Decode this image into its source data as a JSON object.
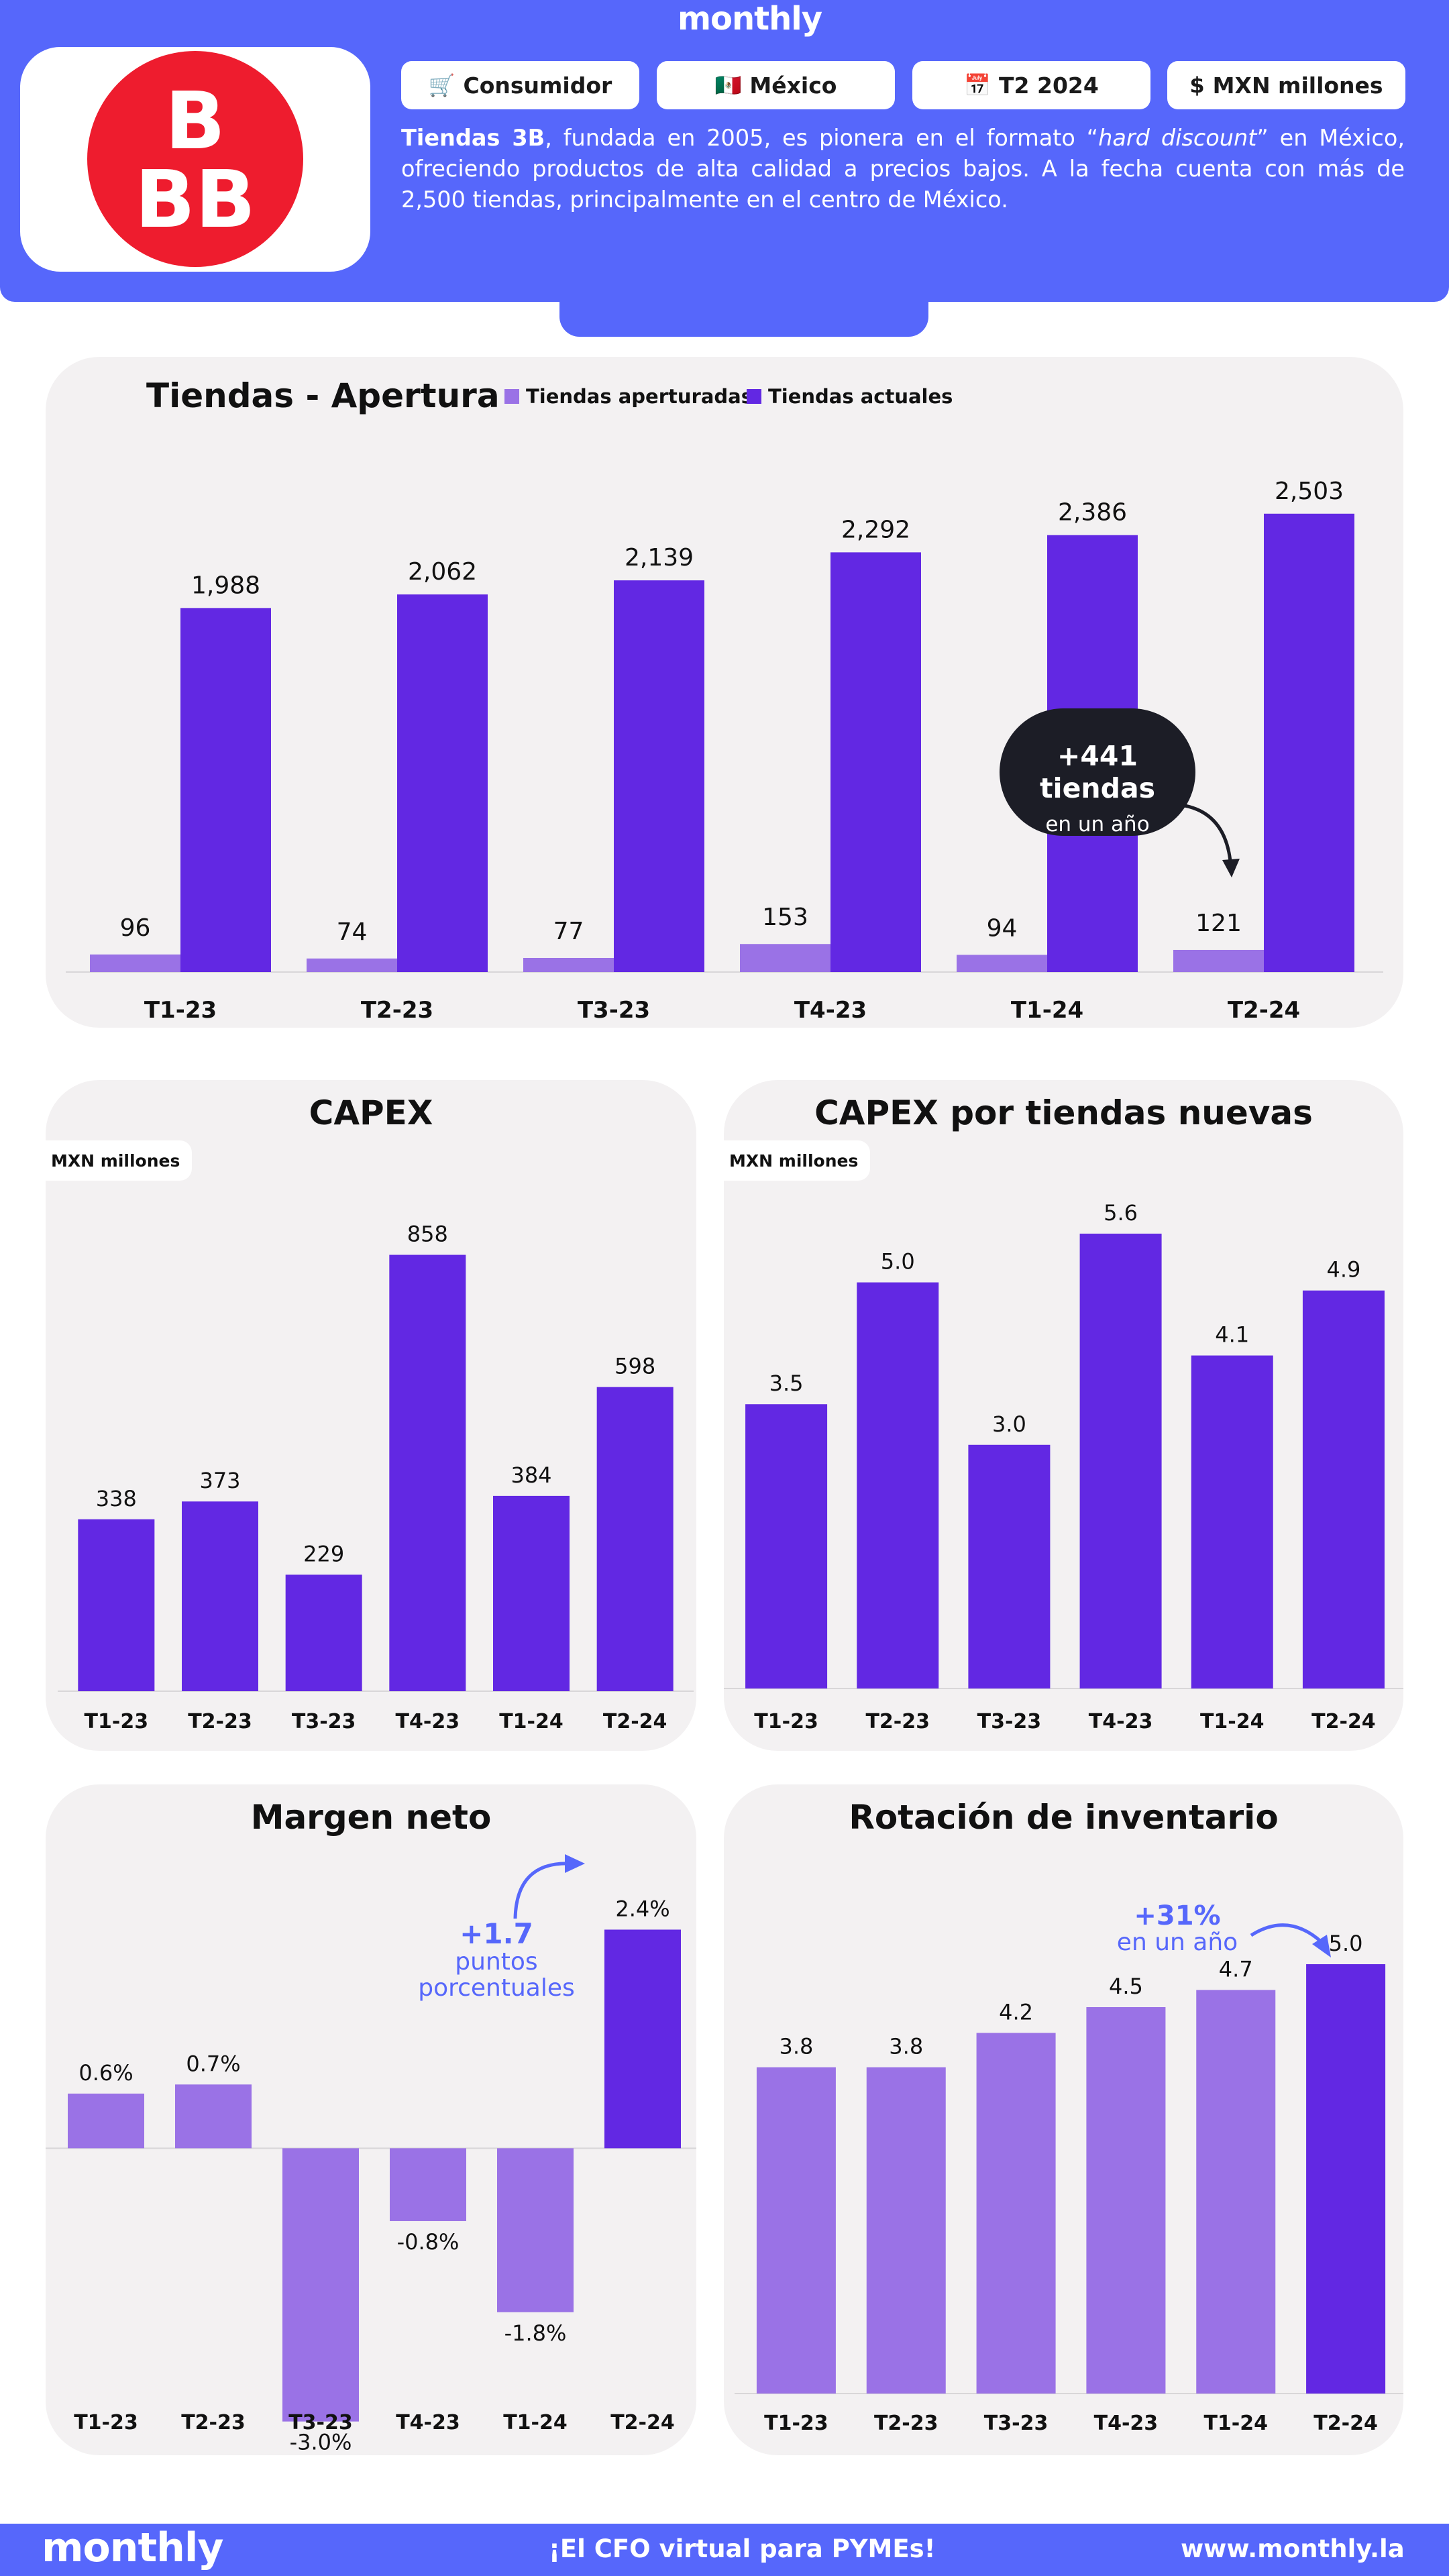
{
  "brand": "monthly",
  "header": {
    "pills": [
      {
        "icon": "cart-icon",
        "glyph": "🛒",
        "label": "Consumidor"
      },
      {
        "icon": "mexico-flag-icon",
        "glyph": "🇲🇽",
        "label": "México"
      },
      {
        "icon": "calendar-icon",
        "glyph": "📅",
        "label": "T2 2024"
      },
      {
        "icon": "dollar-icon",
        "glyph": "$",
        "label": "MXN millones"
      }
    ],
    "company": "Tiendas 3B",
    "desc_a": ", fundada en 2005, es pionera en el formato “",
    "desc_em": "hard discount",
    "desc_b": "” en México, ofreciendo productos de alta calidad a precios bajos. A la fecha cuenta con más de 2,500 tiendas, principalmente en el centro de México.",
    "logo_text": {
      "top": "B",
      "bottom": "BB"
    }
  },
  "colors": {
    "blue": "#5667fb",
    "purple": "#6228e3",
    "light_purple": "#9a72e6",
    "panel": "#f3f1f2",
    "dark": "#1c1d26",
    "logo_red": "#ee1c2e"
  },
  "chart_data": [
    {
      "id": "tiendas",
      "type": "bar",
      "title": "Tiendas - Apertura",
      "categories": [
        "T1-23",
        "T2-23",
        "T3-23",
        "T4-23",
        "T1-24",
        "T2-24"
      ],
      "series": [
        {
          "name": "Tiendas aperturadas",
          "values": [
            96,
            74,
            77,
            153,
            94,
            121
          ],
          "labels": [
            "96",
            "74",
            "77",
            "153",
            "94",
            "121"
          ]
        },
        {
          "name": "Tiendas actuales",
          "values": [
            1988,
            2062,
            2139,
            2292,
            2386,
            2503
          ],
          "labels": [
            "1,988",
            "2,062",
            "2,139",
            "2,292",
            "2,386",
            "2,503"
          ]
        }
      ],
      "ylim": [
        0,
        2700
      ],
      "legend": "top",
      "annotation": {
        "line1": "+441 tiendas",
        "line2": "en un año"
      }
    },
    {
      "id": "capex",
      "type": "bar",
      "title": "CAPEX",
      "unit": "MXN millones",
      "categories": [
        "T1-23",
        "T2-23",
        "T3-23",
        "T4-23",
        "T1-24",
        "T2-24"
      ],
      "values": [
        338,
        373,
        229,
        858,
        384,
        598
      ],
      "labels": [
        "338",
        "373",
        "229",
        "858",
        "384",
        "598"
      ],
      "ylim": [
        0,
        1050
      ]
    },
    {
      "id": "capex_tienda",
      "type": "bar",
      "title": "CAPEX por tiendas nuevas",
      "unit": "MXN millones",
      "categories": [
        "T1-23",
        "T2-23",
        "T3-23",
        "T4-23",
        "T1-24",
        "T2-24"
      ],
      "values": [
        3.5,
        5.0,
        3.0,
        5.6,
        4.1,
        4.9
      ],
      "labels": [
        "3.5",
        "5.0",
        "3.0",
        "5.6",
        "4.1",
        "4.9"
      ],
      "ylim": [
        0,
        6.5
      ]
    },
    {
      "id": "margen",
      "type": "bar",
      "title": "Margen neto",
      "categories": [
        "T1-23",
        "T2-23",
        "T3-23",
        "T4-23",
        "T1-24",
        "T2-24"
      ],
      "values": [
        0.6,
        0.7,
        -3.0,
        -0.8,
        -1.8,
        2.4
      ],
      "labels": [
        "0.6%",
        "0.7%",
        "-3.0%",
        "-0.8%",
        "-1.8%",
        "2.4%"
      ],
      "ylim": [
        -3.4,
        3.0
      ],
      "annotation": {
        "line1": "+1.7",
        "line2": "puntos",
        "line3": "porcentuales"
      }
    },
    {
      "id": "rotacion",
      "type": "bar",
      "title": "Rotación de inventario",
      "categories": [
        "T1-23",
        "T2-23",
        "T3-23",
        "T4-23",
        "T1-24",
        "T2-24"
      ],
      "values": [
        3.8,
        3.8,
        4.2,
        4.5,
        4.7,
        5.0
      ],
      "labels": [
        "3.8",
        "3.8",
        "4.2",
        "4.5",
        "4.7",
        "5.0"
      ],
      "ylim": [
        0,
        6.0
      ],
      "annotation": {
        "line1": "+31%",
        "line2": "en un año"
      }
    }
  ],
  "footer": {
    "tagline": "¡El CFO virtual para PYMEs!",
    "url": "www.monthly.la"
  }
}
